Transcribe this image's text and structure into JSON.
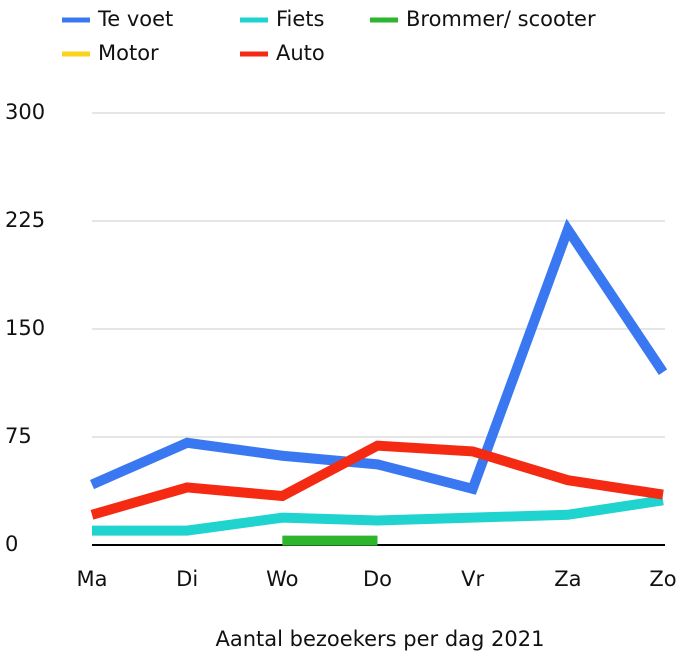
{
  "chart_data": {
    "type": "line",
    "x_label": "Aantal bezoekers per dag 2021",
    "categories": [
      "Ma",
      "Di",
      "Wo",
      "Do",
      "Vr",
      "Za",
      "Zo"
    ],
    "series": [
      {
        "name": "Te voet",
        "color": "#3a78f2",
        "values": [
          42,
          71,
          62,
          56,
          39,
          219,
          120
        ]
      },
      {
        "name": "Fiets",
        "color": "#1fd3cf",
        "values": [
          10,
          10,
          19,
          17,
          19,
          21,
          31
        ]
      },
      {
        "name": "Brommer/ scooter",
        "color": "#2db52d",
        "values": [
          null,
          null,
          3,
          3,
          null,
          null,
          null
        ]
      },
      {
        "name": "Motor",
        "color": "#f9d31c",
        "values": [
          null,
          null,
          null,
          null,
          null,
          null,
          null
        ]
      },
      {
        "name": "Auto",
        "color": "#f52a12",
        "values": [
          21,
          40,
          34,
          69,
          65,
          45,
          35
        ]
      }
    ],
    "ylim": [
      0,
      300
    ],
    "yticks": [
      0,
      75,
      150,
      225,
      300
    ],
    "grid": true,
    "legend": "top"
  }
}
